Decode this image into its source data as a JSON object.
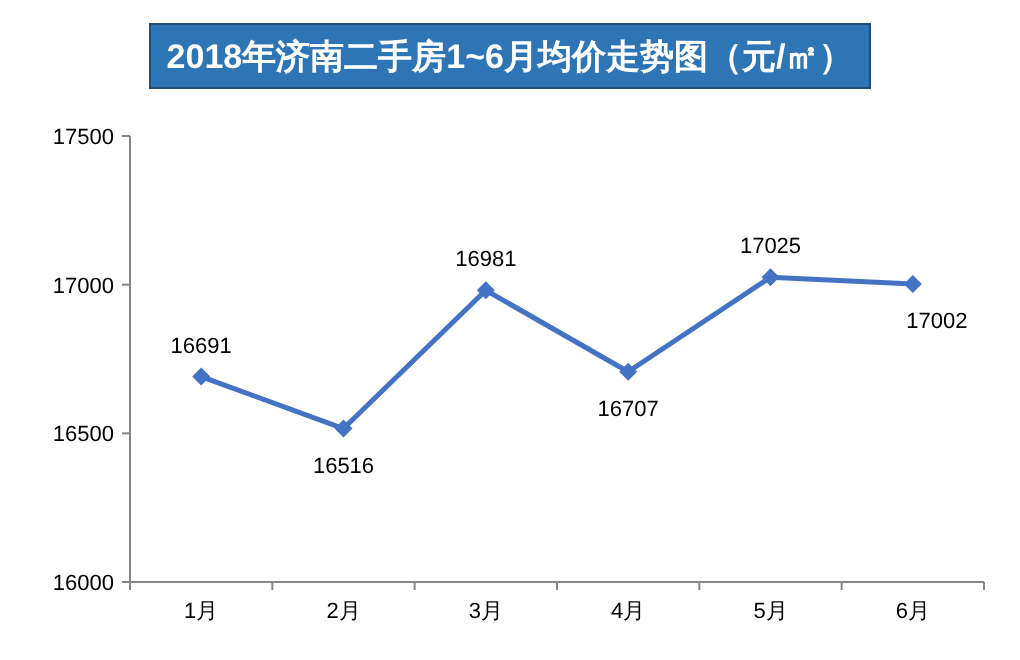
{
  "chart_data": {
    "type": "line",
    "title": "2018年济南二手房1~6月均价走势图（元/㎡）",
    "categories": [
      "1月",
      "2月",
      "3月",
      "4月",
      "5月",
      "6月"
    ],
    "series": [
      {
        "color": "#4472c4",
        "values": [
          16691,
          16516,
          16981,
          16707,
          17025,
          17002
        ]
      }
    ],
    "ylim": [
      16000,
      17500
    ],
    "yticks": [
      16000,
      16500,
      17000,
      17500
    ],
    "data_labels": true,
    "marker": "diamond",
    "grid": false
  }
}
